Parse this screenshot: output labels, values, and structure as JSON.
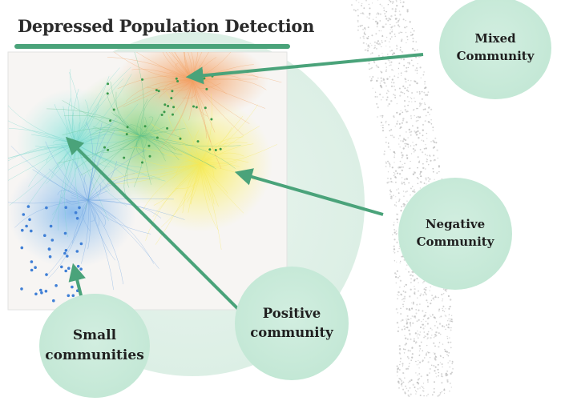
{
  "title": "Depressed Population Detection",
  "colors": {
    "accent": "#4aa37a",
    "bubble": "#c4e8d6",
    "mixed_cluster": "#f0a060",
    "negative_cluster": "#f5e85a",
    "positive_cluster": "#5cc08a",
    "small_cluster": "#6aa0e0"
  },
  "labels": {
    "mixed": [
      "Mixed",
      "Community"
    ],
    "negative": [
      "Negative",
      "Community"
    ],
    "positive": [
      "Positive",
      "community"
    ],
    "small": [
      "Small",
      "communities"
    ]
  }
}
